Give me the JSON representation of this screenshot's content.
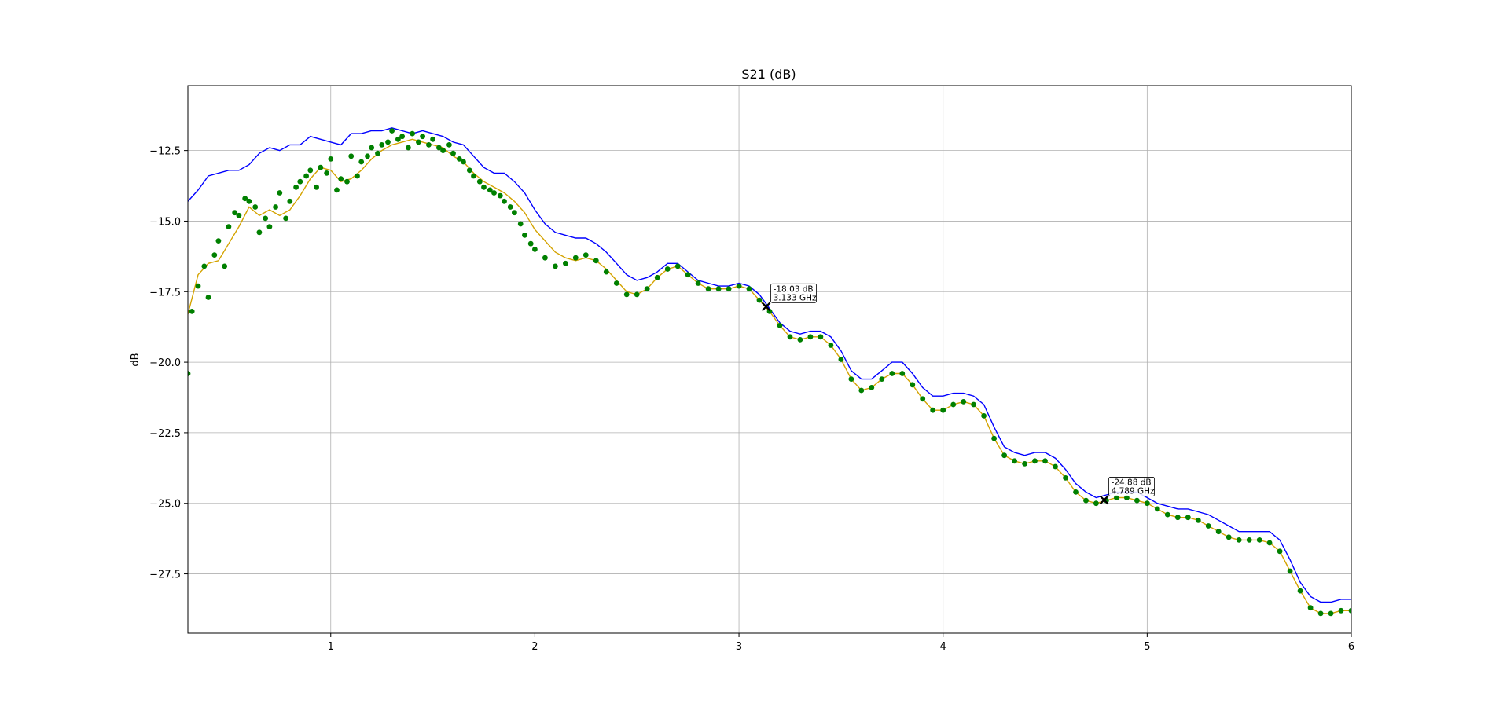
{
  "chart_data": {
    "type": "line",
    "title": "S21 (dB)",
    "xlabel": "",
    "ylabel": "dB",
    "xlim": [
      0.3,
      6.0
    ],
    "ylim": [
      -29.6,
      -10.2
    ],
    "x_ticks": [
      1,
      2,
      3,
      4,
      5,
      6
    ],
    "y_ticks": [
      -12.5,
      -15.0,
      -17.5,
      -20.0,
      -22.5,
      -25.0,
      -27.5
    ],
    "grid": true,
    "colors": {
      "blue": "#0000ff",
      "green": "#008000",
      "gold": "#d4a300",
      "marker": "#000000"
    },
    "series": [
      {
        "style": "line",
        "color": "#0000ff",
        "x": [
          0.3,
          0.35,
          0.4,
          0.45,
          0.5,
          0.55,
          0.6,
          0.65,
          0.7,
          0.75,
          0.8,
          0.85,
          0.9,
          0.95,
          1.0,
          1.05,
          1.1,
          1.15,
          1.2,
          1.25,
          1.3,
          1.35,
          1.4,
          1.45,
          1.5,
          1.55,
          1.6,
          1.65,
          1.7,
          1.75,
          1.8,
          1.85,
          1.9,
          1.95,
          2.0,
          2.05,
          2.1,
          2.15,
          2.2,
          2.25,
          2.3,
          2.35,
          2.4,
          2.45,
          2.5,
          2.55,
          2.6,
          2.65,
          2.7,
          2.75,
          2.8,
          2.85,
          2.9,
          2.95,
          3.0,
          3.05,
          3.1,
          3.15,
          3.2,
          3.25,
          3.3,
          3.35,
          3.4,
          3.45,
          3.5,
          3.55,
          3.6,
          3.65,
          3.7,
          3.75,
          3.8,
          3.85,
          3.9,
          3.95,
          4.0,
          4.05,
          4.1,
          4.15,
          4.2,
          4.25,
          4.3,
          4.35,
          4.4,
          4.45,
          4.5,
          4.55,
          4.6,
          4.65,
          4.7,
          4.75,
          4.8,
          4.85,
          4.9,
          4.95,
          5.0,
          5.05,
          5.1,
          5.15,
          5.2,
          5.25,
          5.3,
          5.35,
          5.4,
          5.45,
          5.5,
          5.55,
          5.6,
          5.65,
          5.7,
          5.75,
          5.8,
          5.85,
          5.9,
          5.95,
          6.0
        ],
        "y": [
          -14.3,
          -13.9,
          -13.4,
          -13.3,
          -13.2,
          -13.2,
          -13.0,
          -12.6,
          -12.4,
          -12.5,
          -12.3,
          -12.3,
          -12.0,
          -12.1,
          -12.2,
          -12.3,
          -11.9,
          -11.9,
          -11.8,
          -11.8,
          -11.7,
          -11.8,
          -11.9,
          -11.8,
          -11.9,
          -12.0,
          -12.2,
          -12.3,
          -12.7,
          -13.1,
          -13.3,
          -13.3,
          -13.6,
          -14.0,
          -14.6,
          -15.1,
          -15.4,
          -15.5,
          -15.6,
          -15.6,
          -15.8,
          -16.1,
          -16.5,
          -16.9,
          -17.1,
          -17.0,
          -16.8,
          -16.5,
          -16.5,
          -16.8,
          -17.1,
          -17.2,
          -17.3,
          -17.3,
          -17.2,
          -17.3,
          -17.6,
          -18.1,
          -18.6,
          -18.9,
          -19.0,
          -18.9,
          -18.9,
          -19.1,
          -19.6,
          -20.3,
          -20.6,
          -20.6,
          -20.3,
          -20.0,
          -20.0,
          -20.4,
          -20.9,
          -21.2,
          -21.2,
          -21.1,
          -21.1,
          -21.2,
          -21.5,
          -22.3,
          -23.0,
          -23.2,
          -23.3,
          -23.2,
          -23.2,
          -23.4,
          -23.8,
          -24.3,
          -24.6,
          -24.8,
          -24.7,
          -24.6,
          -24.6,
          -24.6,
          -24.8,
          -25.0,
          -25.1,
          -25.2,
          -25.2,
          -25.3,
          -25.4,
          -25.6,
          -25.8,
          -26.0,
          -26.0,
          -26.0,
          -26.0,
          -26.3,
          -27.0,
          -27.8,
          -28.3,
          -28.5,
          -28.5,
          -28.4,
          -28.4
        ]
      },
      {
        "style": "line",
        "color": "#d4a300",
        "x": [
          0.3,
          0.35,
          0.4,
          0.45,
          0.5,
          0.55,
          0.6,
          0.65,
          0.7,
          0.75,
          0.8,
          0.85,
          0.9,
          0.95,
          1.0,
          1.05,
          1.1,
          1.15,
          1.2,
          1.25,
          1.3,
          1.35,
          1.4,
          1.45,
          1.5,
          1.55,
          1.6,
          1.65,
          1.7,
          1.75,
          1.8,
          1.85,
          1.9,
          1.95,
          2.0,
          2.05,
          2.1,
          2.15,
          2.2,
          2.25,
          2.3,
          2.35,
          2.4,
          2.45,
          2.5,
          2.55,
          2.6,
          2.65,
          2.7,
          2.75,
          2.8,
          2.85,
          2.9,
          2.95,
          3.0,
          3.05,
          3.1,
          3.15,
          3.2,
          3.25,
          3.3,
          3.35,
          3.4,
          3.45,
          3.5,
          3.55,
          3.6,
          3.65,
          3.7,
          3.75,
          3.8,
          3.85,
          3.9,
          3.95,
          4.0,
          4.05,
          4.1,
          4.15,
          4.2,
          4.25,
          4.3,
          4.35,
          4.4,
          4.45,
          4.5,
          4.55,
          4.6,
          4.65,
          4.7,
          4.75,
          4.8,
          4.85,
          4.9,
          4.95,
          5.0,
          5.05,
          5.1,
          5.15,
          5.2,
          5.25,
          5.3,
          5.35,
          5.4,
          5.45,
          5.5,
          5.55,
          5.6,
          5.65,
          5.7,
          5.75,
          5.8,
          5.85,
          5.9,
          5.95,
          6.0
        ],
        "y": [
          -18.3,
          -16.9,
          -16.5,
          -16.4,
          -15.8,
          -15.2,
          -14.5,
          -14.8,
          -14.6,
          -14.8,
          -14.6,
          -14.1,
          -13.5,
          -13.1,
          -13.2,
          -13.6,
          -13.5,
          -13.2,
          -12.8,
          -12.5,
          -12.3,
          -12.2,
          -12.1,
          -12.2,
          -12.3,
          -12.4,
          -12.7,
          -12.9,
          -13.3,
          -13.6,
          -13.8,
          -14.0,
          -14.3,
          -14.7,
          -15.3,
          -15.7,
          -16.1,
          -16.3,
          -16.4,
          -16.3,
          -16.4,
          -16.7,
          -17.1,
          -17.5,
          -17.6,
          -17.4,
          -17.0,
          -16.7,
          -16.6,
          -16.9,
          -17.2,
          -17.4,
          -17.4,
          -17.4,
          -17.3,
          -17.4,
          -17.8,
          -18.2,
          -18.7,
          -19.1,
          -19.2,
          -19.1,
          -19.1,
          -19.4,
          -19.9,
          -20.6,
          -21.0,
          -20.9,
          -20.6,
          -20.4,
          -20.4,
          -20.8,
          -21.3,
          -21.7,
          -21.7,
          -21.5,
          -21.4,
          -21.5,
          -21.9,
          -22.7,
          -23.3,
          -23.5,
          -23.6,
          -23.5,
          -23.5,
          -23.7,
          -24.1,
          -24.6,
          -24.9,
          -25.0,
          -24.9,
          -24.8,
          -24.8,
          -24.9,
          -25.0,
          -25.2,
          -25.4,
          -25.5,
          -25.5,
          -25.6,
          -25.8,
          -26.0,
          -26.2,
          -26.3,
          -26.3,
          -26.3,
          -26.4,
          -26.7,
          -27.4,
          -28.1,
          -28.7,
          -28.9,
          -28.9,
          -28.8,
          -28.8
        ]
      },
      {
        "style": "scatter",
        "color": "#008000",
        "x": [
          0.3,
          0.32,
          0.35,
          0.38,
          0.4,
          0.43,
          0.45,
          0.48,
          0.5,
          0.53,
          0.55,
          0.58,
          0.6,
          0.63,
          0.65,
          0.68,
          0.7,
          0.73,
          0.75,
          0.78,
          0.8,
          0.83,
          0.85,
          0.88,
          0.9,
          0.93,
          0.95,
          0.98,
          1.0,
          1.03,
          1.05,
          1.08,
          1.1,
          1.13,
          1.15,
          1.18,
          1.2,
          1.23,
          1.25,
          1.28,
          1.3,
          1.33,
          1.35,
          1.38,
          1.4,
          1.43,
          1.45,
          1.48,
          1.5,
          1.53,
          1.55,
          1.58,
          1.6,
          1.63,
          1.65,
          1.68,
          1.7,
          1.73,
          1.75,
          1.78,
          1.8,
          1.83,
          1.85,
          1.88,
          1.9,
          1.93,
          1.95,
          1.98,
          2.0,
          2.05,
          2.1,
          2.15,
          2.2,
          2.25,
          2.3,
          2.35,
          2.4,
          2.45,
          2.5,
          2.55,
          2.6,
          2.65,
          2.7,
          2.75,
          2.8,
          2.85,
          2.9,
          2.95,
          3.0,
          3.05,
          3.1,
          3.15,
          3.2,
          3.25,
          3.3,
          3.35,
          3.4,
          3.45,
          3.5,
          3.55,
          3.6,
          3.65,
          3.7,
          3.75,
          3.8,
          3.85,
          3.9,
          3.95,
          4.0,
          4.05,
          4.1,
          4.15,
          4.2,
          4.25,
          4.3,
          4.35,
          4.4,
          4.45,
          4.5,
          4.55,
          4.6,
          4.65,
          4.7,
          4.75,
          4.8,
          4.85,
          4.9,
          4.95,
          5.0,
          5.05,
          5.1,
          5.15,
          5.2,
          5.25,
          5.3,
          5.35,
          5.4,
          5.45,
          5.5,
          5.55,
          5.6,
          5.65,
          5.7,
          5.75,
          5.8,
          5.85,
          5.9,
          5.95,
          6.0
        ],
        "y": [
          -20.4,
          -18.2,
          -17.3,
          -16.6,
          -17.7,
          -16.2,
          -15.7,
          -16.6,
          -15.2,
          -14.7,
          -14.8,
          -14.2,
          -14.3,
          -14.5,
          -15.4,
          -14.9,
          -15.2,
          -14.5,
          -14.0,
          -14.9,
          -14.3,
          -13.8,
          -13.6,
          -13.4,
          -13.2,
          -13.8,
          -13.1,
          -13.3,
          -12.8,
          -13.9,
          -13.5,
          -13.6,
          -12.7,
          -13.4,
          -12.9,
          -12.7,
          -12.4,
          -12.6,
          -12.3,
          -12.2,
          -11.8,
          -12.1,
          -12.0,
          -12.4,
          -11.9,
          -12.2,
          -12.0,
          -12.3,
          -12.1,
          -12.4,
          -12.5,
          -12.3,
          -12.6,
          -12.8,
          -12.9,
          -13.2,
          -13.4,
          -13.6,
          -13.8,
          -13.9,
          -14.0,
          -14.1,
          -14.3,
          -14.5,
          -14.7,
          -15.1,
          -15.5,
          -15.8,
          -16.0,
          -16.3,
          -16.6,
          -16.5,
          -16.3,
          -16.2,
          -16.4,
          -16.8,
          -17.2,
          -17.6,
          -17.6,
          -17.4,
          -17.0,
          -16.7,
          -16.6,
          -16.9,
          -17.2,
          -17.4,
          -17.4,
          -17.4,
          -17.3,
          -17.4,
          -17.8,
          -18.2,
          -18.7,
          -19.1,
          -19.2,
          -19.1,
          -19.1,
          -19.4,
          -19.9,
          -20.6,
          -21.0,
          -20.9,
          -20.6,
          -20.4,
          -20.4,
          -20.8,
          -21.3,
          -21.7,
          -21.7,
          -21.5,
          -21.4,
          -21.5,
          -21.9,
          -22.7,
          -23.3,
          -23.5,
          -23.6,
          -23.5,
          -23.5,
          -23.7,
          -24.1,
          -24.6,
          -24.9,
          -25.0,
          -24.9,
          -24.8,
          -24.8,
          -24.9,
          -25.0,
          -25.2,
          -25.4,
          -25.5,
          -25.5,
          -25.6,
          -25.8,
          -26.0,
          -26.2,
          -26.3,
          -26.3,
          -26.3,
          -26.4,
          -26.7,
          -27.4,
          -28.1,
          -28.7,
          -28.9,
          -28.9,
          -28.8,
          -28.8
        ]
      }
    ],
    "markers": [
      {
        "x": 3.133,
        "y": -18.03,
        "label_line1": "-18.03 dB",
        "label_line2": "3.133 GHz"
      },
      {
        "x": 4.789,
        "y": -24.88,
        "label_line1": "-24.88 dB",
        "label_line2": "4.789 GHz"
      }
    ]
  }
}
